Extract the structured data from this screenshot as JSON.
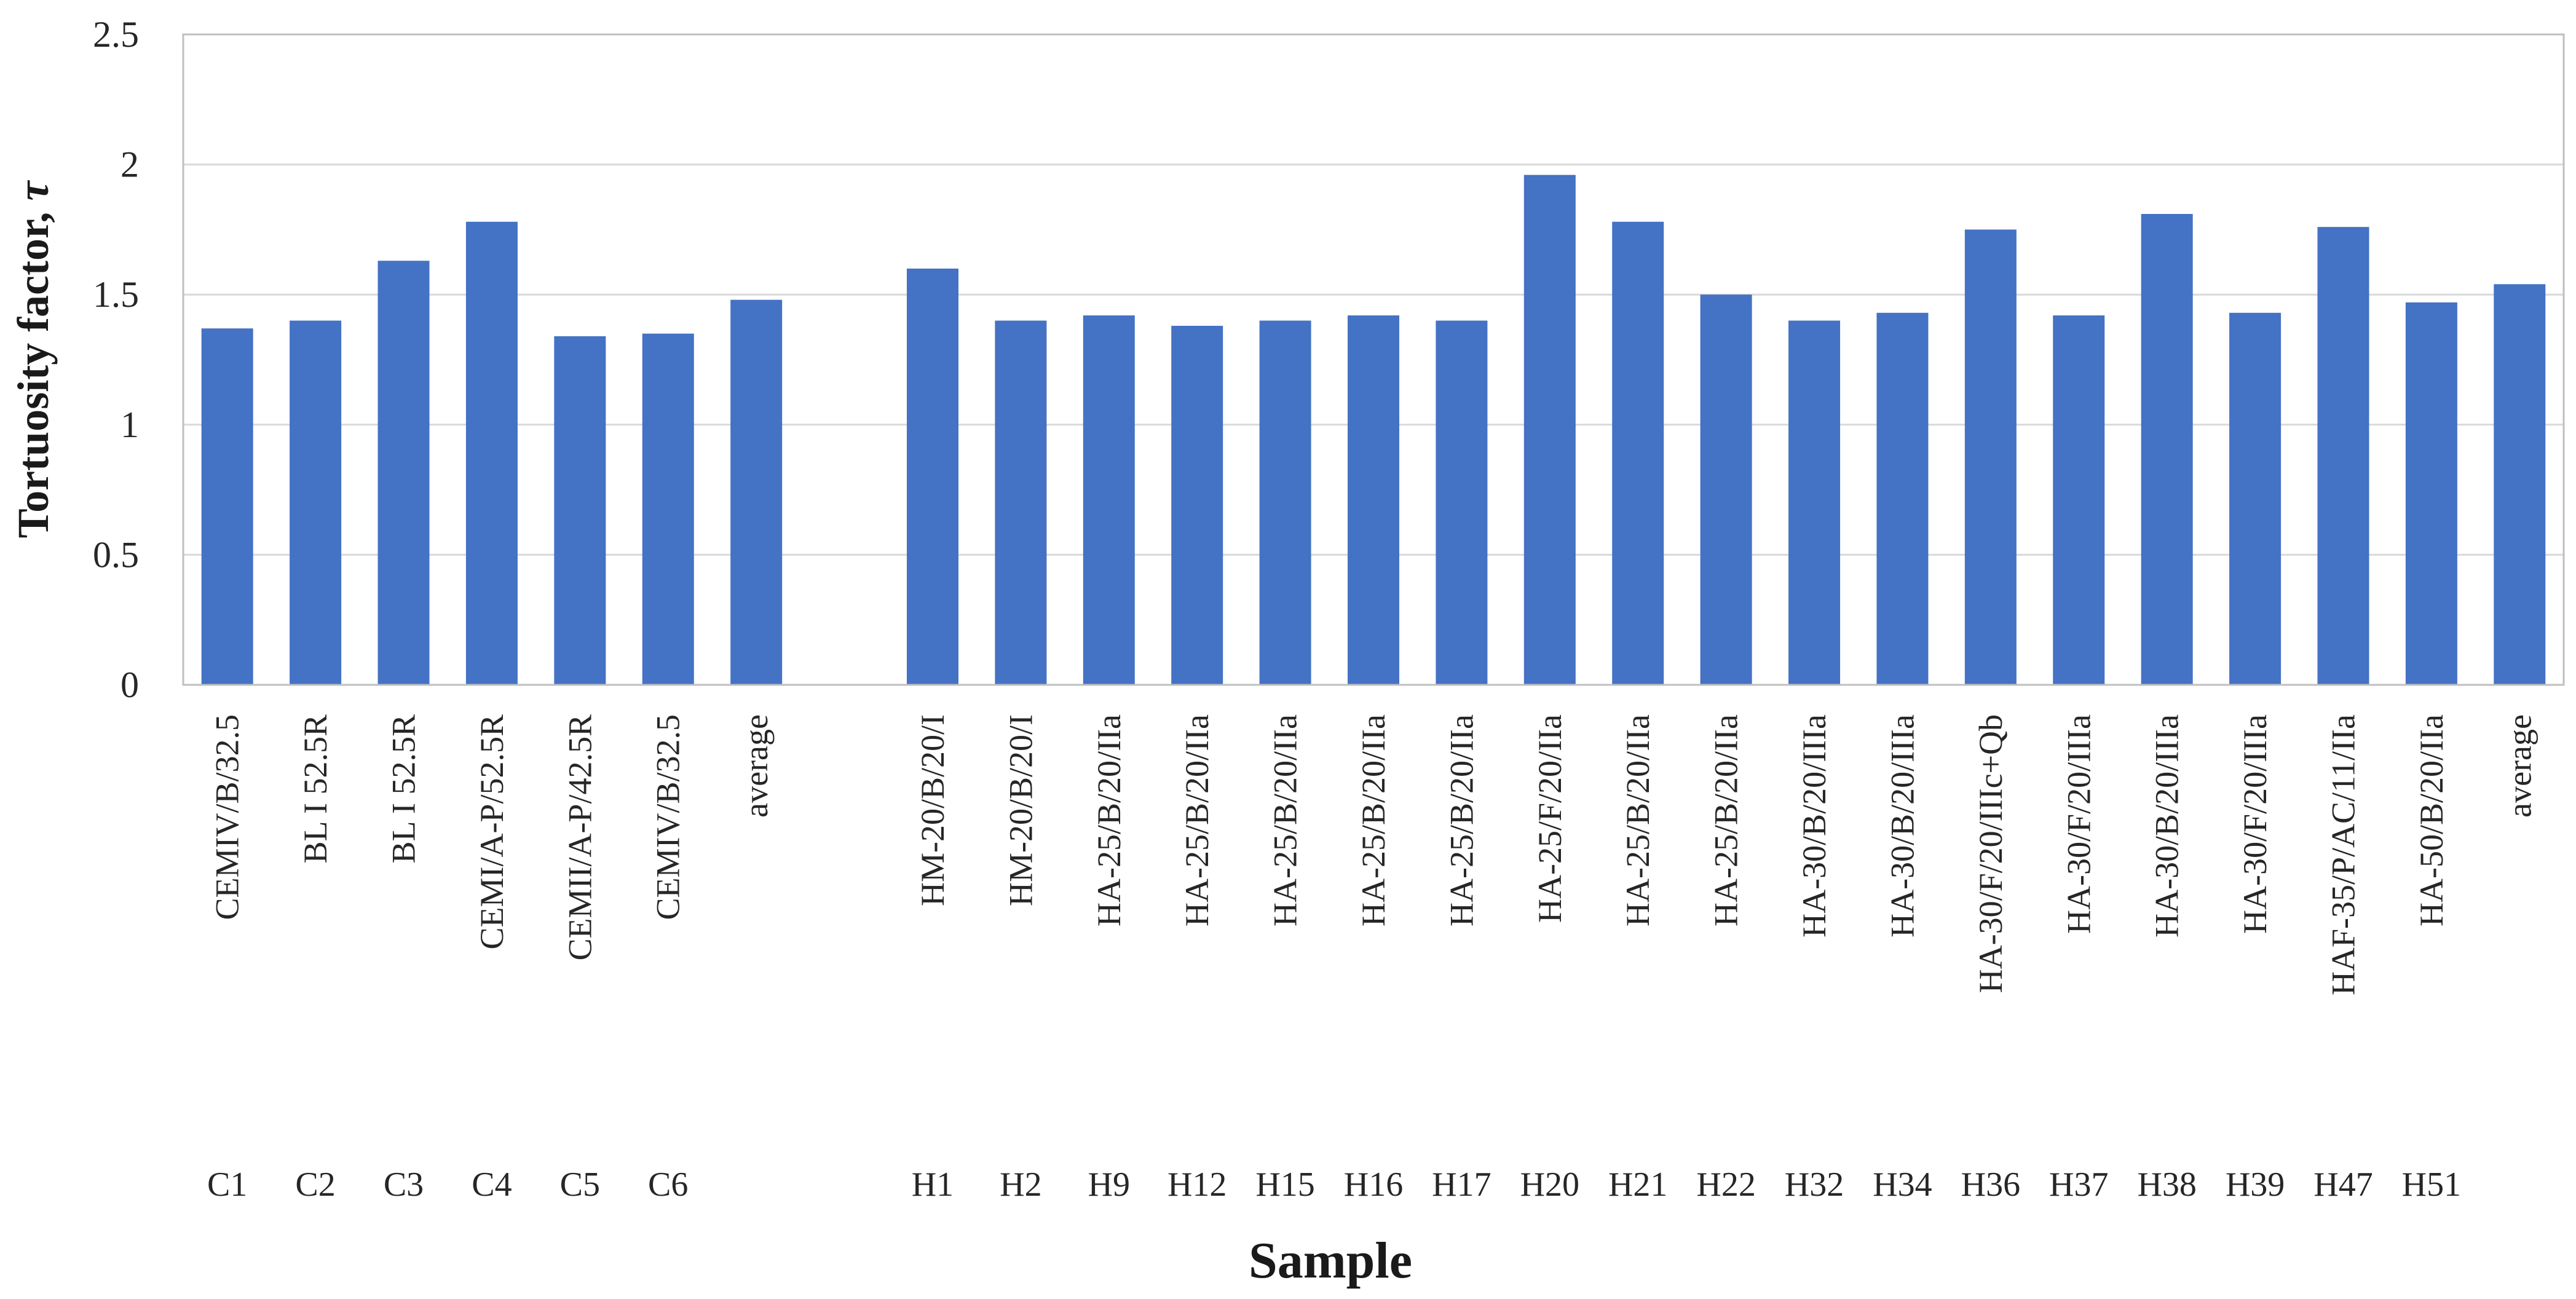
{
  "chart_data": {
    "type": "bar",
    "title": "",
    "xlabel": "Sample",
    "ylabel": "Tortuosity factor, ",
    "ylabel_symbol": "τ",
    "ylim": [
      0,
      2.5
    ],
    "yticks": [
      "0",
      "0.5",
      "1",
      "1.5",
      "2",
      "2.5"
    ],
    "grid": true,
    "legend": "none",
    "bar_color": "#4472C4",
    "grid_color": "#d9d9d9",
    "axis_color": "#bfbfbf",
    "categories": [
      {
        "name": "CEMIV/B/32.5",
        "code": "C1",
        "value": 1.37
      },
      {
        "name": "BL I 52.5R",
        "code": "C2",
        "value": 1.4
      },
      {
        "name": "BL I 52.5R",
        "code": "C3",
        "value": 1.63
      },
      {
        "name": "CEMI/A-P/52.5R",
        "code": "C4",
        "value": 1.78
      },
      {
        "name": "CEMII/A-P/42.5R",
        "code": "C5",
        "value": 1.34
      },
      {
        "name": "CEMIV/B/32.5",
        "code": "C6",
        "value": 1.35
      },
      {
        "name": "average",
        "code": "",
        "value": 1.48
      },
      {
        "name": "",
        "code": "",
        "value": null
      },
      {
        "name": "HM-20/B/20/I",
        "code": "H1",
        "value": 1.6
      },
      {
        "name": "HM-20/B/20/I",
        "code": "H2",
        "value": 1.4
      },
      {
        "name": "HA-25/B/20/IIa",
        "code": "H9",
        "value": 1.42
      },
      {
        "name": "HA-25/B/20/IIa",
        "code": "H12",
        "value": 1.38
      },
      {
        "name": "HA-25/B/20/IIa",
        "code": "H15",
        "value": 1.4
      },
      {
        "name": "HA-25/B/20/IIa",
        "code": "H16",
        "value": 1.42
      },
      {
        "name": "HA-25/B/20/IIa",
        "code": "H17",
        "value": 1.4
      },
      {
        "name": "HA-25/F/20/IIa",
        "code": "H20",
        "value": 1.96
      },
      {
        "name": "HA-25/B/20/IIa",
        "code": "H21",
        "value": 1.78
      },
      {
        "name": "HA-25/B/20/IIa",
        "code": "H22",
        "value": 1.5
      },
      {
        "name": "HA-30/B/20/IIIa",
        "code": "H32",
        "value": 1.4
      },
      {
        "name": "HA-30/B/20/IIIa",
        "code": "H34",
        "value": 1.43
      },
      {
        "name": "HA-30/F/20/IIIc+Qb",
        "code": "H36",
        "value": 1.75
      },
      {
        "name": "HA-30/F/20/IIIa",
        "code": "H37",
        "value": 1.42
      },
      {
        "name": "HA-30/B/20/IIIa",
        "code": "H38",
        "value": 1.81
      },
      {
        "name": "HA-30/F/20/IIIa",
        "code": "H39",
        "value": 1.43
      },
      {
        "name": "HAF-35/P/AC/11/IIa",
        "code": "H47",
        "value": 1.76
      },
      {
        "name": "HA-50/B/20/IIa",
        "code": "H51",
        "value": 1.47
      },
      {
        "name": "average",
        "code": "",
        "value": 1.54
      }
    ]
  }
}
